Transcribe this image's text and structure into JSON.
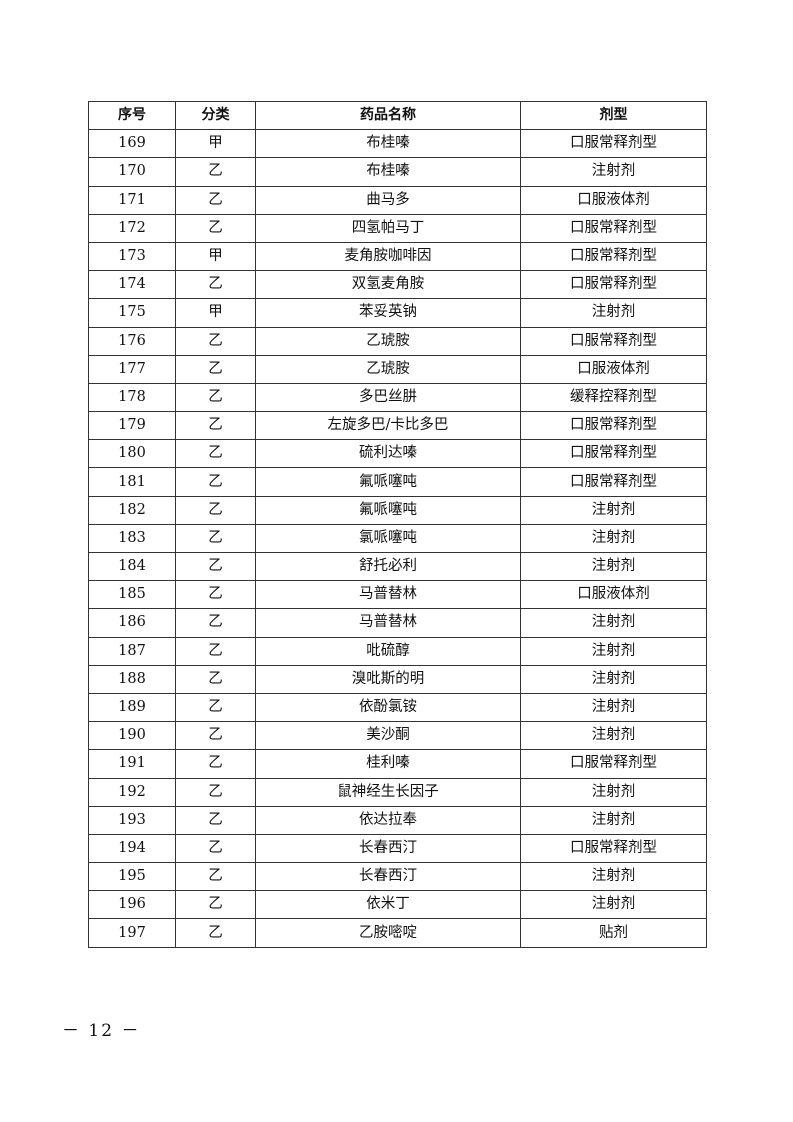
{
  "table": {
    "headers": [
      "序号",
      "分类",
      "药品名称",
      "剂型"
    ],
    "rows": [
      [
        "169",
        "甲",
        "布桂嗪",
        "口服常释剂型"
      ],
      [
        "170",
        "乙",
        "布桂嗪",
        "注射剂"
      ],
      [
        "171",
        "乙",
        "曲马多",
        "口服液体剂"
      ],
      [
        "172",
        "乙",
        "四氢帕马丁",
        "口服常释剂型"
      ],
      [
        "173",
        "甲",
        "麦角胺咖啡因",
        "口服常释剂型"
      ],
      [
        "174",
        "乙",
        "双氢麦角胺",
        "口服常释剂型"
      ],
      [
        "175",
        "甲",
        "苯妥英钠",
        "注射剂"
      ],
      [
        "176",
        "乙",
        "乙琥胺",
        "口服常释剂型"
      ],
      [
        "177",
        "乙",
        "乙琥胺",
        "口服液体剂"
      ],
      [
        "178",
        "乙",
        "多巴丝肼",
        "缓释控释剂型"
      ],
      [
        "179",
        "乙",
        "左旋多巴/卡比多巴",
        "口服常释剂型"
      ],
      [
        "180",
        "乙",
        "硫利达嗪",
        "口服常释剂型"
      ],
      [
        "181",
        "乙",
        "氟哌噻吨",
        "口服常释剂型"
      ],
      [
        "182",
        "乙",
        "氟哌噻吨",
        "注射剂"
      ],
      [
        "183",
        "乙",
        "氯哌噻吨",
        "注射剂"
      ],
      [
        "184",
        "乙",
        "舒托必利",
        "注射剂"
      ],
      [
        "185",
        "乙",
        "马普替林",
        "口服液体剂"
      ],
      [
        "186",
        "乙",
        "马普替林",
        "注射剂"
      ],
      [
        "187",
        "乙",
        "吡硫醇",
        "注射剂"
      ],
      [
        "188",
        "乙",
        "溴吡斯的明",
        "注射剂"
      ],
      [
        "189",
        "乙",
        "依酚氯铵",
        "注射剂"
      ],
      [
        "190",
        "乙",
        "美沙酮",
        "注射剂"
      ],
      [
        "191",
        "乙",
        "桂利嗪",
        "口服常释剂型"
      ],
      [
        "192",
        "乙",
        "鼠神经生长因子",
        "注射剂"
      ],
      [
        "193",
        "乙",
        "依达拉奉",
        "注射剂"
      ],
      [
        "194",
        "乙",
        "长春西汀",
        "口服常释剂型"
      ],
      [
        "195",
        "乙",
        "长春西汀",
        "注射剂"
      ],
      [
        "196",
        "乙",
        "依米丁",
        "注射剂"
      ],
      [
        "197",
        "乙",
        "乙胺嘧啶",
        "贴剂"
      ]
    ]
  },
  "footer": {
    "page_number": "－ 12 －"
  }
}
